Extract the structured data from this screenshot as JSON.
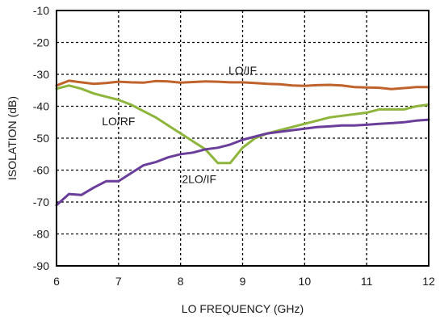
{
  "chart_data": {
    "type": "line",
    "xlabel": "LO FREQUENCY (GHz)",
    "ylabel": "ISOLATION  (dB)",
    "xlim": [
      6,
      12
    ],
    "ylim": [
      -90,
      -10
    ],
    "xticks": [
      6,
      7,
      8,
      9,
      10,
      11,
      12
    ],
    "yticks": [
      -10,
      -20,
      -30,
      -40,
      -50,
      -60,
      -70,
      -80,
      -90
    ],
    "xtick_labels": [
      "6",
      "7",
      "8",
      "9",
      "10",
      "11",
      "12"
    ],
    "ytick_labels": [
      "-10",
      "-20",
      "-30",
      "-40",
      "-50",
      "-60",
      "-70",
      "-80",
      "-90"
    ],
    "grid": true,
    "series": [
      {
        "name": "LO/IF",
        "color": "#c0622b",
        "x": [
          6.0,
          6.2,
          6.4,
          6.6,
          6.8,
          7.0,
          7.2,
          7.4,
          7.6,
          7.8,
          8.0,
          8.2,
          8.4,
          8.6,
          8.8,
          9.0,
          9.2,
          9.4,
          9.6,
          9.8,
          10.0,
          10.2,
          10.4,
          10.6,
          10.8,
          11.0,
          11.2,
          11.4,
          11.6,
          11.8,
          12.0
        ],
        "y": [
          -33.5,
          -32.0,
          -32.5,
          -33.0,
          -32.7,
          -32.3,
          -32.5,
          -32.6,
          -32.1,
          -32.2,
          -32.6,
          -32.4,
          -32.2,
          -32.3,
          -32.5,
          -32.5,
          -32.7,
          -33.0,
          -33.1,
          -33.5,
          -33.6,
          -33.4,
          -33.3,
          -33.5,
          -34.0,
          -34.1,
          -34.2,
          -34.6,
          -34.3,
          -34.0,
          -34.0
        ]
      },
      {
        "name": "LO/RF",
        "color": "#8db53c",
        "x": [
          6.0,
          6.2,
          6.4,
          6.6,
          6.8,
          7.0,
          7.2,
          7.4,
          7.6,
          7.8,
          8.0,
          8.2,
          8.4,
          8.6,
          8.8,
          9.0,
          9.2,
          9.4,
          9.6,
          9.8,
          10.0,
          10.2,
          10.4,
          10.6,
          10.8,
          11.0,
          11.2,
          11.4,
          11.6,
          11.8,
          12.0
        ],
        "y": [
          -34.5,
          -33.5,
          -34.5,
          -36.0,
          -37.0,
          -38.0,
          -39.5,
          -41.5,
          -43.5,
          -46.0,
          -48.5,
          -51.0,
          -53.5,
          -57.8,
          -57.8,
          -53.0,
          -50.0,
          -48.5,
          -47.5,
          -46.5,
          -45.5,
          -44.5,
          -43.5,
          -43.0,
          -42.5,
          -42.0,
          -41.0,
          -41.0,
          -41.0,
          -40.0,
          -39.5
        ]
      },
      {
        "name": "2LO/IF",
        "color": "#6a3d9a",
        "x": [
          6.0,
          6.2,
          6.4,
          6.6,
          6.8,
          7.0,
          7.2,
          7.4,
          7.6,
          7.8,
          8.0,
          8.2,
          8.4,
          8.6,
          8.8,
          9.0,
          9.2,
          9.4,
          9.6,
          9.8,
          10.0,
          10.2,
          10.4,
          10.6,
          10.8,
          11.0,
          11.2,
          11.4,
          11.6,
          11.8,
          12.0
        ],
        "y": [
          -71.0,
          -67.5,
          -67.8,
          -65.5,
          -63.5,
          -63.5,
          -61.0,
          -58.5,
          -57.5,
          -56.0,
          -55.0,
          -54.5,
          -53.5,
          -53.0,
          -52.0,
          -50.5,
          -49.5,
          -48.5,
          -48.0,
          -47.5,
          -47.0,
          -46.5,
          -46.3,
          -46.0,
          -46.0,
          -45.8,
          -45.5,
          -45.3,
          -45.0,
          -44.5,
          -44.2
        ]
      }
    ],
    "annotations": [
      {
        "text": "LO/IF",
        "x": 9.0,
        "y": -30.0
      },
      {
        "text": "LO/RF",
        "x": 7.0,
        "y": -46.0
      },
      {
        "text": "2LO/IF",
        "x": 8.3,
        "y": -64.0
      }
    ]
  }
}
